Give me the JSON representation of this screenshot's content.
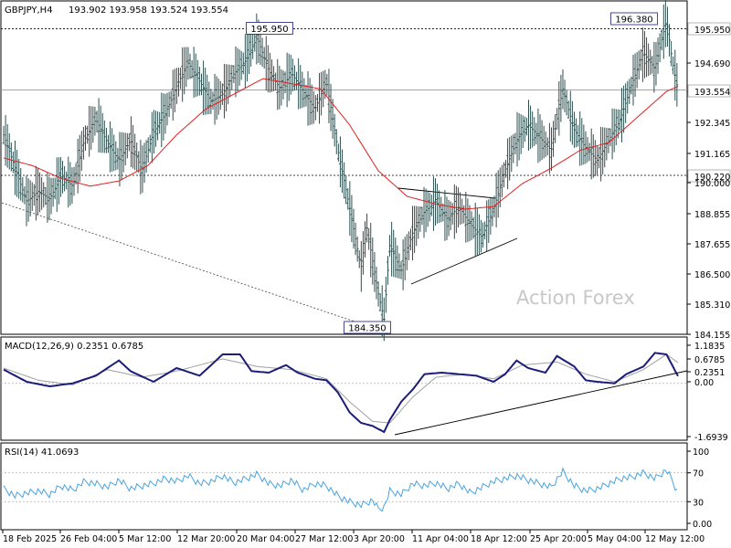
{
  "header": {
    "symbol": "GBPJPY,H4",
    "ohlc": "193.902 193.958 193.524 193.554",
    "macd_title": "MACD(12,26,9) 0.2351 0.6785",
    "rsi_title": "RSI(14) 41.0693",
    "watermark": "Action Forex"
  },
  "colors": {
    "bars": "#2f4f4f",
    "ma": "#e02020",
    "macd": "#1c1c7a",
    "signal": "#a0a0a0",
    "rsi": "#4aa3df",
    "grid": "#000000"
  },
  "chart_data": [
    {
      "type": "ohlc",
      "title": "GBPJPY,H4",
      "y_ticks": [
        "195.950",
        "194.690",
        "193.554",
        "192.345",
        "191.165",
        "190.220",
        "190.000",
        "188.855",
        "187.655",
        "186.500",
        "185.310",
        "184.155"
      ],
      "ylim": [
        184.155,
        196.5
      ],
      "annotations": [
        {
          "text": "195.950",
          "value": 195.95,
          "kind": "level"
        },
        {
          "text": "196.380",
          "value": 196.38,
          "kind": "high"
        },
        {
          "text": "184.350",
          "value": 184.35,
          "kind": "low"
        },
        {
          "text": "193.554",
          "value": 193.554,
          "kind": "current"
        },
        {
          "text": "190.220",
          "value": 190.22,
          "kind": "level"
        }
      ],
      "close_path": [
        [
          0,
          191.8
        ],
        [
          2,
          190.5
        ],
        [
          4,
          189.2
        ],
        [
          6,
          189.6
        ],
        [
          8,
          189.3
        ],
        [
          10,
          190.2
        ],
        [
          12,
          189.8
        ],
        [
          14,
          191.6
        ],
        [
          16,
          192.4
        ],
        [
          18,
          191.5
        ],
        [
          20,
          190.8
        ],
        [
          22,
          191.6
        ],
        [
          24,
          190.4
        ],
        [
          26,
          191.9
        ],
        [
          28,
          192.6
        ],
        [
          30,
          193.7
        ],
        [
          32,
          194.6
        ],
        [
          34,
          193.9
        ],
        [
          36,
          193.1
        ],
        [
          38,
          193.4
        ],
        [
          40,
          194.2
        ],
        [
          42,
          194.7
        ],
        [
          44,
          195.6
        ],
        [
          46,
          194.3
        ],
        [
          48,
          193.6
        ],
        [
          50,
          194.2
        ],
        [
          52,
          193.5
        ],
        [
          54,
          192.8
        ],
        [
          56,
          193.9
        ],
        [
          58,
          191.2
        ],
        [
          60,
          189.0
        ],
        [
          62,
          186.6
        ],
        [
          63,
          188.2
        ],
        [
          65,
          185.6
        ],
        [
          66,
          184.6
        ],
        [
          67,
          187.5
        ],
        [
          69,
          186.5
        ],
        [
          71,
          188.0
        ],
        [
          73,
          188.8
        ],
        [
          75,
          189.2
        ],
        [
          77,
          188.5
        ],
        [
          79,
          189.0
        ],
        [
          81,
          188.3
        ],
        [
          83,
          187.8
        ],
        [
          85,
          188.9
        ],
        [
          87,
          190.4
        ],
        [
          89,
          191.6
        ],
        [
          91,
          192.2
        ],
        [
          93,
          191.7
        ],
        [
          95,
          191.2
        ],
        [
          97,
          193.6
        ],
        [
          99,
          192.0
        ],
        [
          101,
          191.3
        ],
        [
          103,
          190.8
        ],
        [
          105,
          191.6
        ],
        [
          107,
          192.4
        ],
        [
          109,
          193.8
        ],
        [
          111,
          195.0
        ],
        [
          113,
          194.4
        ],
        [
          115,
          196.3
        ],
        [
          116,
          194.7
        ],
        [
          117,
          193.55
        ]
      ],
      "ma_path": [
        [
          0,
          190.9
        ],
        [
          5,
          190.6
        ],
        [
          10,
          190.1
        ],
        [
          15,
          189.8
        ],
        [
          20,
          190.0
        ],
        [
          25,
          190.6
        ],
        [
          30,
          191.8
        ],
        [
          35,
          192.8
        ],
        [
          40,
          193.4
        ],
        [
          45,
          194.0
        ],
        [
          50,
          193.8
        ],
        [
          55,
          193.6
        ],
        [
          60,
          192.2
        ],
        [
          65,
          190.4
        ],
        [
          70,
          189.4
        ],
        [
          75,
          189.1
        ],
        [
          80,
          188.9
        ],
        [
          85,
          189.0
        ],
        [
          90,
          189.9
        ],
        [
          95,
          190.5
        ],
        [
          100,
          191.2
        ],
        [
          105,
          191.5
        ],
        [
          110,
          192.5
        ],
        [
          115,
          193.5
        ],
        [
          117,
          193.7
        ]
      ],
      "x_ticks": [
        "18 Feb 2025",
        "26 Feb 04:00",
        "5 Mar 12:00",
        "12 Mar 20:00",
        "20 Mar 04:00",
        "27 Mar 12:00",
        "3 Apr 20:00",
        "11 Apr 04:00",
        "18 Apr 12:00",
        "25 Apr 20:00",
        "5 May 04:00",
        "12 May 12:00"
      ]
    },
    {
      "type": "line",
      "title": "MACD(12,26,9) 0.2351 0.6785",
      "y_ticks": [
        "1.1835",
        "0.6785",
        "0.2351",
        "0.00",
        "-1.6939"
      ],
      "ylim": [
        -1.75,
        1.25
      ],
      "series": [
        {
          "name": "MACD",
          "points": [
            [
              0,
              0.45
            ],
            [
              4,
              0.05
            ],
            [
              8,
              -0.1
            ],
            [
              12,
              0.0
            ],
            [
              16,
              0.25
            ],
            [
              20,
              0.75
            ],
            [
              22,
              0.4
            ],
            [
              26,
              0.05
            ],
            [
              30,
              0.5
            ],
            [
              34,
              0.25
            ],
            [
              36,
              0.6
            ],
            [
              38,
              0.95
            ],
            [
              41,
              0.95
            ],
            [
              43,
              0.4
            ],
            [
              46,
              0.35
            ],
            [
              49,
              0.6
            ],
            [
              51,
              0.35
            ],
            [
              54,
              0.15
            ],
            [
              56,
              0.1
            ],
            [
              58,
              -0.3
            ],
            [
              60,
              -0.95
            ],
            [
              62,
              -1.3
            ],
            [
              64,
              -1.4
            ],
            [
              66,
              -1.6
            ],
            [
              67,
              -1.2
            ],
            [
              69,
              -0.6
            ],
            [
              71,
              -0.2
            ],
            [
              73,
              0.3
            ],
            [
              76,
              0.35
            ],
            [
              79,
              0.3
            ],
            [
              82,
              0.25
            ],
            [
              85,
              0.05
            ],
            [
              87,
              0.3
            ],
            [
              89,
              0.75
            ],
            [
              91,
              0.5
            ],
            [
              94,
              0.35
            ],
            [
              96,
              0.9
            ],
            [
              99,
              0.55
            ],
            [
              101,
              0.1
            ],
            [
              103,
              0.05
            ],
            [
              106,
              0.0
            ],
            [
              108,
              0.3
            ],
            [
              111,
              0.55
            ],
            [
              113,
              1.0
            ],
            [
              115,
              0.95
            ],
            [
              117,
              0.2351
            ]
          ]
        },
        {
          "name": "Signal",
          "points": [
            [
              0,
              0.5
            ],
            [
              6,
              0.1
            ],
            [
              12,
              -0.05
            ],
            [
              18,
              0.45
            ],
            [
              24,
              0.2
            ],
            [
              30,
              0.4
            ],
            [
              38,
              0.8
            ],
            [
              44,
              0.55
            ],
            [
              50,
              0.45
            ],
            [
              56,
              0.15
            ],
            [
              60,
              -0.6
            ],
            [
              64,
              -1.25
            ],
            [
              67,
              -1.3
            ],
            [
              71,
              -0.45
            ],
            [
              75,
              0.2
            ],
            [
              80,
              0.3
            ],
            [
              85,
              0.15
            ],
            [
              90,
              0.6
            ],
            [
              96,
              0.7
            ],
            [
              101,
              0.3
            ],
            [
              106,
              0.05
            ],
            [
              111,
              0.45
            ],
            [
              115,
              0.95
            ],
            [
              117,
              0.6785
            ]
          ]
        }
      ]
    },
    {
      "type": "line",
      "title": "RSI(14) 41.0693",
      "y_ticks": [
        "100",
        "70",
        "30",
        "0.00"
      ],
      "ylim": [
        0,
        100
      ],
      "series": [
        {
          "name": "RSI",
          "points": [
            [
              0,
              48
            ],
            [
              2,
              38
            ],
            [
              4,
              42
            ],
            [
              6,
              45
            ],
            [
              8,
              40
            ],
            [
              10,
              52
            ],
            [
              12,
              46
            ],
            [
              14,
              58
            ],
            [
              16,
              55
            ],
            [
              18,
              50
            ],
            [
              20,
              60
            ],
            [
              22,
              48
            ],
            [
              24,
              52
            ],
            [
              26,
              55
            ],
            [
              28,
              62
            ],
            [
              30,
              58
            ],
            [
              32,
              66
            ],
            [
              34,
              55
            ],
            [
              36,
              58
            ],
            [
              38,
              66
            ],
            [
              40,
              56
            ],
            [
              42,
              62
            ],
            [
              44,
              68
            ],
            [
              46,
              55
            ],
            [
              48,
              52
            ],
            [
              50,
              60
            ],
            [
              52,
              46
            ],
            [
              54,
              55
            ],
            [
              56,
              52
            ],
            [
              58,
              38
            ],
            [
              60,
              30
            ],
            [
              62,
              25
            ],
            [
              64,
              32
            ],
            [
              65,
              20
            ],
            [
              66,
              22
            ],
            [
              67,
              45
            ],
            [
              69,
              40
            ],
            [
              71,
              55
            ],
            [
              73,
              52
            ],
            [
              75,
              56
            ],
            [
              77,
              48
            ],
            [
              79,
              55
            ],
            [
              81,
              42
            ],
            [
              83,
              50
            ],
            [
              85,
              58
            ],
            [
              87,
              62
            ],
            [
              89,
              66
            ],
            [
              91,
              60
            ],
            [
              93,
              55
            ],
            [
              95,
              50
            ],
            [
              97,
              72
            ],
            [
              99,
              52
            ],
            [
              101,
              45
            ],
            [
              103,
              48
            ],
            [
              105,
              55
            ],
            [
              107,
              62
            ],
            [
              109,
              64
            ],
            [
              111,
              70
            ],
            [
              113,
              62
            ],
            [
              115,
              74
            ],
            [
              116,
              60
            ],
            [
              117,
              41
            ]
          ]
        }
      ]
    }
  ]
}
